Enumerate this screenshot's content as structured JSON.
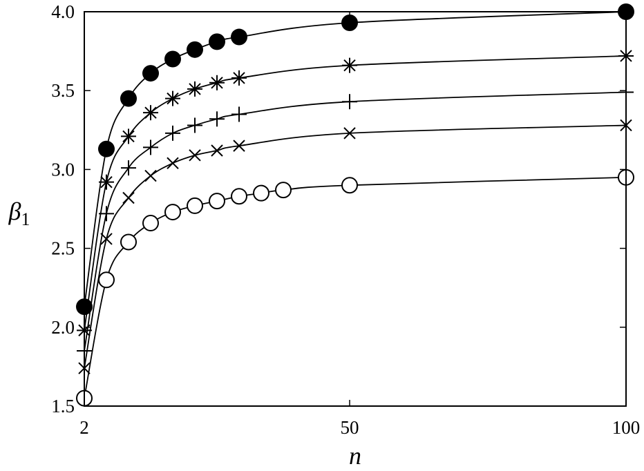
{
  "chart_data": {
    "type": "line",
    "xlabel": "n",
    "ylabel_symbol": "β",
    "ylabel_subscript": "1",
    "xlim": [
      2,
      100
    ],
    "ylim": [
      1.5,
      4.0
    ],
    "xticks": [
      2,
      50,
      100
    ],
    "yticks": [
      1.5,
      2.0,
      2.5,
      3.0,
      3.5,
      4.0
    ],
    "ytick_labels": [
      "1.5",
      "2.0",
      "2.5",
      "3.0",
      "3.5",
      "4.0"
    ],
    "xtick_labels": [
      "2",
      "50",
      "100"
    ],
    "grid": false,
    "series": [
      {
        "marker": "filled-circle",
        "x": [
          2,
          6,
          10,
          14,
          18,
          22,
          26,
          30,
          50,
          100
        ],
        "y": [
          2.13,
          3.13,
          3.45,
          3.61,
          3.7,
          3.76,
          3.81,
          3.84,
          3.93,
          4.0
        ]
      },
      {
        "marker": "asterisk",
        "x": [
          2,
          6,
          10,
          14,
          18,
          22,
          26,
          30,
          50,
          100
        ],
        "y": [
          1.98,
          2.92,
          3.21,
          3.36,
          3.45,
          3.51,
          3.55,
          3.58,
          3.66,
          3.72
        ]
      },
      {
        "marker": "plus",
        "x": [
          2,
          6,
          10,
          14,
          18,
          22,
          26,
          30,
          50,
          100
        ],
        "y": [
          1.85,
          2.72,
          3.01,
          3.14,
          3.23,
          3.28,
          3.32,
          3.35,
          3.43,
          3.49
        ]
      },
      {
        "marker": "cross",
        "x": [
          2,
          6,
          10,
          14,
          18,
          22,
          26,
          30,
          50,
          100
        ],
        "y": [
          1.74,
          2.56,
          2.82,
          2.96,
          3.04,
          3.09,
          3.12,
          3.15,
          3.23,
          3.28
        ]
      },
      {
        "marker": "open-circle",
        "x": [
          2,
          6,
          10,
          14,
          18,
          22,
          26,
          30,
          34,
          38,
          50,
          100
        ],
        "y": [
          1.55,
          2.3,
          2.54,
          2.66,
          2.73,
          2.77,
          2.8,
          2.83,
          2.85,
          2.87,
          2.9,
          2.95
        ]
      }
    ]
  }
}
